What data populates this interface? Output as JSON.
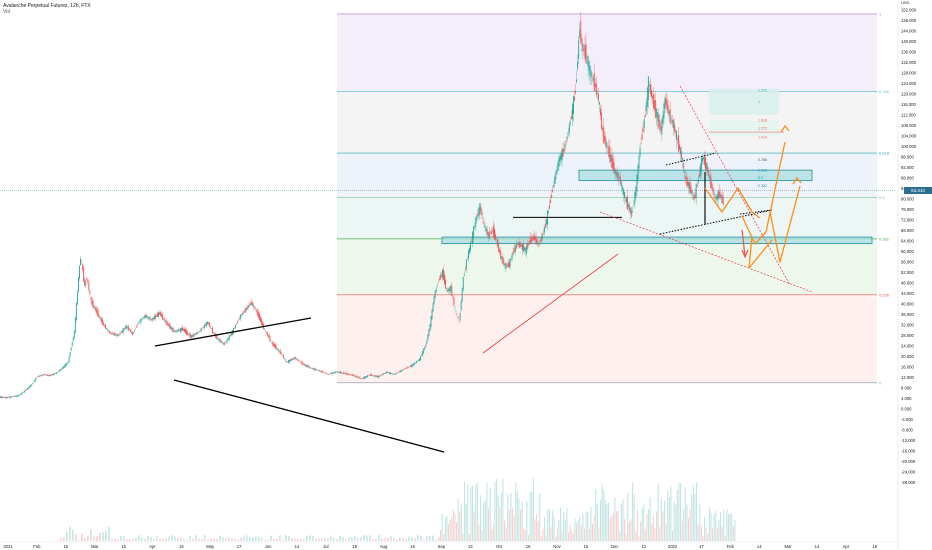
{
  "header": {
    "title": "Avalanche Perpetual Futures, 12h, FTX",
    "volume_label": "Vol"
  },
  "colors": {
    "up": "#26a69a",
    "down": "#ef5350",
    "trendline": "#000000",
    "support": "#f23645",
    "projection": "#ff8c1a",
    "zone_fill": "#a9dde2",
    "zone_border": "#1d8fa0",
    "fib_line": "#8fcfd6"
  },
  "chart_data": {
    "type": "candlestick",
    "title": "Avalanche Perpetual Futures, 12h, FTX",
    "yaxis": {
      "ticks": [
        -28,
        -24,
        -20,
        -16,
        -12,
        -8,
        -4,
        0,
        4,
        8,
        12,
        16,
        20,
        24,
        28,
        32,
        36,
        40,
        44,
        48,
        52,
        56,
        60,
        64,
        68,
        72,
        76,
        80,
        84,
        88,
        92,
        96,
        100,
        104,
        108,
        112,
        116,
        120,
        124,
        128,
        132,
        136,
        140,
        144,
        148,
        152
      ],
      "tick_labels": [
        "-28.000",
        "-24.000",
        "-20.000",
        "-16.000",
        "-12.000",
        "-8.000",
        "-4.000",
        "0.000",
        "4.000",
        "8.000",
        "12.000",
        "16.000",
        "20.000",
        "24.000",
        "28.000",
        "32.000",
        "36.000",
        "40.000",
        "44.000",
        "48.000",
        "52.000",
        "56.000",
        "60.000",
        "64.000",
        "68.000",
        "72.000",
        "76.000",
        "80.000",
        "84.000",
        "88.000",
        "92.000",
        "96.000",
        "100.000",
        "104.000",
        "108.000",
        "112.000",
        "116.000",
        "120.000",
        "124.000",
        "128.000",
        "132.000",
        "136.000",
        "140.000",
        "144.000",
        "148.000",
        "152.000"
      ],
      "ylim": [
        -30,
        155
      ],
      "currency": "USD"
    },
    "xaxis": {
      "tick_labels": [
        "2021",
        "Feb",
        "15",
        "Mar",
        "15",
        "Apr",
        "15",
        "May",
        "17",
        "Jun",
        "14",
        "Jul",
        "19",
        "Aug",
        "16",
        "Sep",
        "13",
        "Oct",
        "18",
        "Nov",
        "15",
        "Dec",
        "13",
        "2022",
        "17",
        "Feb",
        "14",
        "Mar",
        "14",
        "Apr",
        "18"
      ],
      "range": [
        "2021-01-01",
        "2022-04-25"
      ]
    },
    "current_price": {
      "value": 83.31,
      "label": "83.310"
    },
    "fib_levels": [
      {
        "ratio": 1,
        "label": "1",
        "price": 150.5
      },
      {
        "ratio": 0.786,
        "label": "0.786",
        "price": 121.0
      },
      {
        "ratio": 0.618,
        "label": "0.618",
        "price": 97.5
      },
      {
        "ratio": 0.5,
        "label": "0.5",
        "price": 80.5
      },
      {
        "ratio": 0.382,
        "label": "0.382",
        "price": 64.8
      },
      {
        "ratio": 0.236,
        "label": "0.236",
        "price": 43.5
      },
      {
        "ratio": 0,
        "label": "0",
        "price": 10.0
      }
    ],
    "zones": [
      {
        "name": "upper zone",
        "from": 87.0,
        "to": 91.0
      },
      {
        "name": "lower zone",
        "from": 63.0,
        "to": 65.5
      }
    ],
    "small_fib_labels": [
      "1.272",
      "1",
      "1.618",
      "1.272",
      "1.414",
      "0.786",
      "0.618",
      "0.5",
      "0.382"
    ],
    "candles": [
      [
        0,
        4.55
      ],
      [
        3,
        4.3
      ],
      [
        6,
        4.7
      ],
      [
        9,
        5.1
      ],
      [
        13,
        7.4
      ],
      [
        16,
        9.8
      ],
      [
        18,
        12.2
      ],
      [
        21,
        13.1
      ],
      [
        24,
        12.7
      ],
      [
        27,
        13.6
      ],
      [
        30,
        15.4
      ],
      [
        33,
        17.9
      ],
      [
        36,
        29.5
      ],
      [
        38,
        50.0
      ],
      [
        39,
        58.0
      ],
      [
        41,
        47.0
      ],
      [
        42,
        50.0
      ],
      [
        44,
        41.0
      ],
      [
        47,
        36.5
      ],
      [
        50,
        32.0
      ],
      [
        53,
        29.0
      ],
      [
        57,
        28.0
      ],
      [
        61,
        31.5
      ],
      [
        64,
        28.5
      ],
      [
        67,
        33.0
      ],
      [
        70,
        35.5
      ],
      [
        73,
        34.0
      ],
      [
        77,
        36.5
      ],
      [
        80,
        33.0
      ],
      [
        84,
        29.5
      ],
      [
        88,
        30.5
      ],
      [
        92,
        27.5
      ],
      [
        96,
        29.5
      ],
      [
        100,
        33.0
      ],
      [
        104,
        27.5
      ],
      [
        108,
        24.5
      ],
      [
        112,
        29.5
      ],
      [
        116,
        35.5
      ],
      [
        119,
        38.5
      ],
      [
        121,
        40.5
      ],
      [
        123,
        38.0
      ],
      [
        127,
        31.0
      ],
      [
        131,
        25.0
      ],
      [
        135,
        21.5
      ],
      [
        138,
        17.8
      ],
      [
        142,
        19.5
      ],
      [
        146,
        17.0
      ],
      [
        150,
        15.5
      ],
      [
        154,
        14.5
      ],
      [
        158,
        13.2
      ],
      [
        162,
        14.2
      ],
      [
        166,
        13.5
      ],
      [
        170,
        12.8
      ],
      [
        174,
        11.5
      ],
      [
        178,
        13.0
      ],
      [
        182,
        12.3
      ],
      [
        186,
        14.0
      ],
      [
        190,
        13.2
      ],
      [
        194,
        15.0
      ],
      [
        198,
        16.5
      ],
      [
        202,
        19.0
      ],
      [
        205,
        24.5
      ],
      [
        207,
        32.0
      ],
      [
        209,
        43.0
      ],
      [
        211,
        49.0
      ],
      [
        213,
        52.0
      ],
      [
        215,
        45.0
      ],
      [
        217,
        46.0
      ],
      [
        219,
        38.0
      ],
      [
        221,
        33.0
      ],
      [
        223,
        50.0
      ],
      [
        225,
        58.0
      ],
      [
        227,
        64.5
      ],
      [
        229,
        72.0
      ],
      [
        231,
        77.0
      ],
      [
        233,
        70.0
      ],
      [
        235,
        66.0
      ],
      [
        237,
        68.0
      ],
      [
        239,
        64.0
      ],
      [
        241,
        58.0
      ],
      [
        243,
        54.5
      ],
      [
        245,
        55.0
      ],
      [
        247,
        60.0
      ],
      [
        249,
        63.0
      ],
      [
        251,
        62.0
      ],
      [
        253,
        60.5
      ],
      [
        255,
        64.0
      ],
      [
        257,
        65.5
      ],
      [
        259,
        62.5
      ],
      [
        261,
        66.0
      ],
      [
        263,
        72.0
      ],
      [
        265,
        80.0
      ],
      [
        267,
        88.0
      ],
      [
        269,
        95.0
      ],
      [
        271,
        98.0
      ],
      [
        273,
        104.0
      ],
      [
        275,
        112.0
      ],
      [
        277,
        122.0
      ],
      [
        279,
        146.0
      ],
      [
        280,
        138.0
      ],
      [
        282,
        135.0
      ],
      [
        284,
        128.0
      ],
      [
        286,
        124.0
      ],
      [
        288,
        118.0
      ],
      [
        290,
        105.0
      ],
      [
        292,
        100.0
      ],
      [
        294,
        95.0
      ],
      [
        296,
        90.0
      ],
      [
        298,
        88.0
      ],
      [
        300,
        82.0
      ],
      [
        302,
        78.0
      ],
      [
        304,
        74.0
      ],
      [
        306,
        84.0
      ],
      [
        308,
        100.0
      ],
      [
        310,
        110.0
      ],
      [
        312,
        124.0
      ],
      [
        314,
        118.0
      ],
      [
        316,
        112.0
      ],
      [
        318,
        106.0
      ],
      [
        320,
        118.0
      ],
      [
        322,
        112.0
      ],
      [
        324,
        108.0
      ],
      [
        326,
        102.0
      ],
      [
        328,
        96.0
      ],
      [
        330,
        87.0
      ],
      [
        332,
        84.0
      ],
      [
        334,
        80.0
      ],
      [
        336,
        88.0
      ],
      [
        338,
        96.0
      ],
      [
        340,
        92.0
      ],
      [
        342,
        86.0
      ],
      [
        344,
        80.0
      ],
      [
        346,
        82.0
      ],
      [
        348,
        79.0
      ]
    ]
  }
}
